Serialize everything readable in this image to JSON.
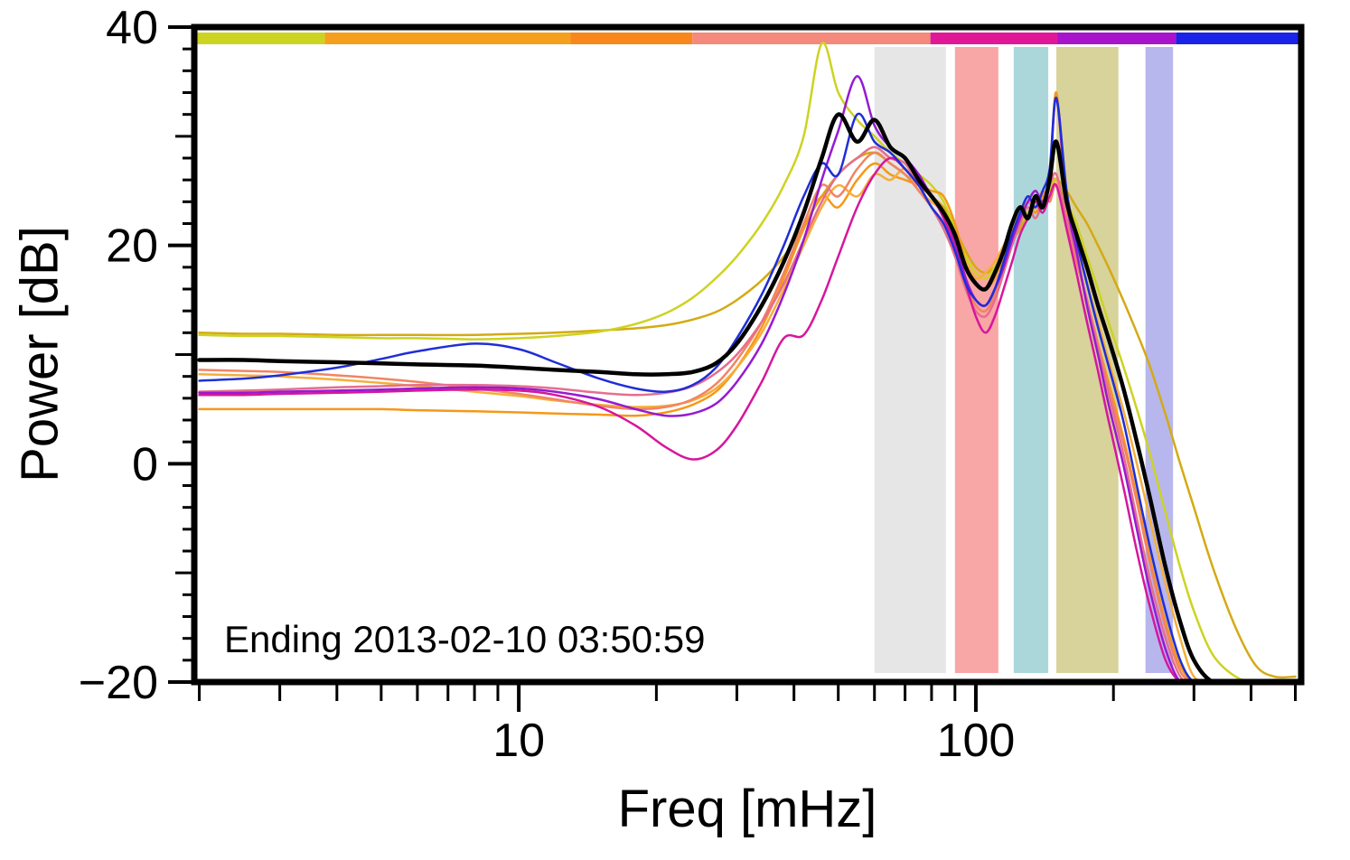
{
  "chart_data": {
    "type": "line",
    "title": "",
    "xlabel": "Freq [mHz]",
    "ylabel": "Power [dB]",
    "annotation": "Ending 2013-02-10 03:50:59",
    "x_scale": "log",
    "y_scale": "linear",
    "xlim": [
      1.95,
      515
    ],
    "ylim": [
      -20,
      40
    ],
    "grid": false,
    "legend": "none",
    "x_major_ticks": [
      {
        "value": 10,
        "label": "10"
      },
      {
        "value": 100,
        "label": "100"
      }
    ],
    "y_major_ticks": [
      {
        "value": 40,
        "label": "40"
      },
      {
        "value": 20,
        "label": "20"
      },
      {
        "value": 0,
        "label": "0"
      },
      {
        "value": -20,
        "label": "−20"
      }
    ],
    "shaded_bands": [
      {
        "name": "gray-band",
        "color": "#e6e6e6",
        "x_range": [
          60,
          86
        ]
      },
      {
        "name": "pink-band",
        "color": "#f9a6a6",
        "x_range": [
          90,
          112
        ]
      },
      {
        "name": "teal-band",
        "color": "#abd7db",
        "x_range": [
          121,
          144
        ]
      },
      {
        "name": "olive-band",
        "color": "#d7d39b",
        "x_range": [
          150,
          205
        ]
      },
      {
        "name": "lavender-band",
        "color": "#b7b7ee",
        "x_range": [
          235,
          270
        ]
      }
    ],
    "top_color_strip": [
      {
        "name": "strip-yellowgreen",
        "color": "#cdd321",
        "span_frac": [
          0.0,
          0.118
        ]
      },
      {
        "name": "strip-orange",
        "color": "#f5a01c",
        "span_frac": [
          0.118,
          0.34
        ]
      },
      {
        "name": "strip-deep-orange",
        "color": "#f8881c",
        "span_frac": [
          0.34,
          0.45
        ]
      },
      {
        "name": "strip-salmon",
        "color": "#f4897c",
        "span_frac": [
          0.45,
          0.665
        ]
      },
      {
        "name": "strip-magenta",
        "color": "#e01898",
        "span_frac": [
          0.665,
          0.78
        ]
      },
      {
        "name": "strip-purple",
        "color": "#a714cc",
        "span_frac": [
          0.78,
          0.887
        ]
      },
      {
        "name": "strip-blue",
        "color": "#1a23e8",
        "span_frac": [
          0.887,
          1.0
        ]
      }
    ],
    "x": [
      2,
      2.5,
      3,
      4,
      5,
      6,
      8,
      10,
      12,
      15,
      18,
      21,
      24,
      27,
      30,
      34,
      38,
      42,
      46,
      50,
      55,
      60,
      65,
      70,
      75,
      80,
      85,
      90,
      95,
      100,
      105,
      110,
      115,
      120,
      125,
      130,
      135,
      140,
      145,
      150,
      158,
      166,
      175,
      185,
      195,
      210,
      225,
      240,
      260,
      280,
      300,
      330,
      370,
      410,
      450,
      500
    ],
    "series": [
      {
        "name": "gold",
        "color": "#d4aa14",
        "width": 2.5,
        "values": [
          12.0,
          11.9,
          11.9,
          11.8,
          11.8,
          11.8,
          11.8,
          11.9,
          12.0,
          12.2,
          12.4,
          12.7,
          13.2,
          13.9,
          15.0,
          16.8,
          19.0,
          21.8,
          24.5,
          26.5,
          28.0,
          28.5,
          27.5,
          26.5,
          25.5,
          24.5,
          23.5,
          21.5,
          19.5,
          18.0,
          17.5,
          18.0,
          19.0,
          20.5,
          21.5,
          23.0,
          23.5,
          24.5,
          25.0,
          26.0,
          25.0,
          23.5,
          22.0,
          20.0,
          18.0,
          15.0,
          12.0,
          9.0,
          4.5,
          0.0,
          -4.0,
          -9.5,
          -15.0,
          -18.5,
          -19.5,
          -19.5
        ]
      },
      {
        "name": "yellow-green",
        "color": "#cdd321",
        "width": 2.5,
        "values": [
          11.8,
          11.7,
          11.7,
          11.6,
          11.5,
          11.5,
          11.4,
          11.5,
          11.7,
          12.1,
          12.8,
          13.8,
          15.2,
          17.0,
          19.0,
          22.0,
          25.5,
          30.0,
          38.5,
          34.0,
          31.5,
          30.0,
          28.5,
          27.5,
          26.5,
          25.5,
          24.0,
          21.5,
          19.0,
          17.5,
          17.0,
          18.0,
          19.5,
          21.0,
          22.0,
          23.0,
          24.0,
          24.5,
          25.0,
          26.0,
          24.0,
          22.0,
          19.0,
          16.0,
          13.0,
          9.0,
          5.0,
          1.0,
          -4.5,
          -9.5,
          -13.5,
          -17.5,
          -19.5,
          -20.0,
          -20.0,
          -20.0
        ]
      },
      {
        "name": "orange",
        "color": "#f59818",
        "width": 2.5,
        "values": [
          5.0,
          5.0,
          5.0,
          5.0,
          5.0,
          4.9,
          4.8,
          4.7,
          4.6,
          4.5,
          4.4,
          4.7,
          5.4,
          6.6,
          8.8,
          12.5,
          17.0,
          21.5,
          24.5,
          23.5,
          26.0,
          27.5,
          26.5,
          26.0,
          25.5,
          25.0,
          24.5,
          22.0,
          18.5,
          16.5,
          16.0,
          17.0,
          19.0,
          21.0,
          22.5,
          24.0,
          23.0,
          24.5,
          26.0,
          34.0,
          23.0,
          19.0,
          15.0,
          11.0,
          7.5,
          2.5,
          -3.0,
          -8.5,
          -14.5,
          -18.5,
          -20.0,
          -20.0,
          -20.0,
          -20.0,
          -20.0,
          -20.0
        ]
      },
      {
        "name": "light-orange",
        "color": "#f6ae3a",
        "width": 2.5,
        "values": [
          8.2,
          8.1,
          8.0,
          7.7,
          7.4,
          7.1,
          6.6,
          6.2,
          5.8,
          5.4,
          5.2,
          5.3,
          5.8,
          6.9,
          8.8,
          12.0,
          16.0,
          20.0,
          23.5,
          25.5,
          24.5,
          26.5,
          26.0,
          27.0,
          25.0,
          24.0,
          23.0,
          21.0,
          18.5,
          17.0,
          17.5,
          18.5,
          20.0,
          21.5,
          23.0,
          24.0,
          25.0,
          24.0,
          25.5,
          26.0,
          23.0,
          20.0,
          16.5,
          13.0,
          9.5,
          5.0,
          0.0,
          -5.0,
          -11.0,
          -16.0,
          -19.5,
          -20.0,
          -20.0,
          -20.0,
          -20.0,
          -20.0
        ]
      },
      {
        "name": "salmon",
        "color": "#f28463",
        "width": 2.5,
        "values": [
          8.6,
          8.5,
          8.4,
          8.1,
          7.8,
          7.5,
          6.9,
          6.4,
          5.9,
          5.3,
          5.0,
          5.2,
          5.9,
          7.3,
          9.5,
          13.0,
          17.5,
          22.0,
          25.5,
          24.5,
          27.0,
          28.5,
          27.5,
          26.5,
          25.0,
          23.5,
          22.0,
          19.5,
          16.5,
          14.5,
          14.0,
          15.5,
          18.0,
          20.5,
          22.5,
          24.0,
          23.5,
          25.0,
          24.0,
          25.5,
          22.0,
          18.5,
          15.0,
          11.0,
          7.0,
          2.0,
          -3.5,
          -9.0,
          -15.0,
          -19.0,
          -20.0,
          -20.0,
          -20.0,
          -20.0,
          -20.0,
          -20.0
        ]
      },
      {
        "name": "rose",
        "color": "#e66e8e",
        "width": 2.5,
        "values": [
          6.6,
          6.7,
          6.8,
          7.0,
          7.1,
          7.2,
          7.2,
          7.1,
          6.9,
          6.5,
          6.3,
          6.5,
          7.1,
          8.3,
          10.0,
          13.0,
          16.5,
          20.5,
          24.0,
          26.5,
          28.0,
          29.0,
          28.0,
          27.5,
          25.5,
          23.5,
          21.5,
          19.0,
          16.0,
          14.0,
          13.5,
          15.0,
          17.5,
          20.0,
          22.0,
          23.5,
          22.5,
          24.0,
          25.5,
          26.5,
          22.5,
          19.0,
          15.0,
          10.5,
          6.5,
          1.0,
          -5.0,
          -10.5,
          -16.0,
          -19.5,
          -20.0,
          -20.0,
          -20.0,
          -20.0,
          -20.0,
          -20.0
        ]
      },
      {
        "name": "magenta",
        "color": "#d6179c",
        "width": 2.5,
        "values": [
          6.3,
          6.3,
          6.4,
          6.5,
          6.6,
          6.7,
          6.8,
          6.7,
          6.3,
          5.2,
          3.5,
          1.5,
          0.4,
          1.2,
          3.5,
          7.5,
          11.5,
          11.8,
          15.0,
          19.0,
          23.5,
          26.5,
          28.0,
          27.0,
          25.5,
          24.5,
          22.5,
          20.0,
          16.5,
          13.5,
          12.0,
          13.5,
          16.0,
          18.5,
          21.0,
          22.5,
          24.0,
          23.0,
          24.5,
          25.5,
          21.5,
          17.5,
          13.0,
          8.5,
          4.0,
          -2.0,
          -8.0,
          -13.0,
          -18.0,
          -20.0,
          -20.0,
          -20.0,
          -20.0,
          -20.0,
          -20.0,
          -20.0
        ]
      },
      {
        "name": "purple",
        "color": "#961ad2",
        "width": 2.5,
        "values": [
          6.5,
          6.5,
          6.6,
          6.7,
          6.8,
          6.9,
          7.0,
          6.9,
          6.6,
          5.9,
          5.0,
          4.4,
          4.6,
          5.5,
          7.5,
          11.0,
          15.5,
          20.5,
          26.0,
          30.5,
          35.5,
          31.0,
          29.0,
          28.0,
          26.5,
          24.5,
          23.0,
          20.5,
          17.0,
          15.0,
          14.5,
          16.0,
          18.0,
          20.5,
          22.5,
          24.0,
          25.0,
          24.0,
          26.0,
          33.5,
          24.0,
          19.5,
          14.5,
          10.0,
          5.5,
          0.0,
          -6.0,
          -11.5,
          -17.0,
          -20.0,
          -20.0,
          -20.0,
          -20.0,
          -20.0,
          -20.0,
          -20.0
        ]
      },
      {
        "name": "blue",
        "color": "#1f2ed8",
        "width": 2.5,
        "values": [
          7.6,
          7.8,
          8.1,
          8.8,
          9.6,
          10.3,
          11.0,
          10.5,
          9.3,
          7.8,
          6.9,
          6.6,
          7.2,
          8.8,
          11.5,
          15.5,
          20.0,
          24.5,
          27.5,
          26.5,
          32.0,
          29.5,
          28.5,
          27.0,
          25.5,
          23.5,
          22.0,
          19.5,
          16.5,
          15.0,
          14.5,
          16.0,
          18.5,
          21.0,
          23.0,
          24.5,
          23.5,
          25.0,
          27.0,
          33.5,
          25.0,
          20.5,
          16.5,
          12.5,
          9.0,
          4.0,
          -2.0,
          -7.5,
          -13.5,
          -18.0,
          -20.0,
          -20.0,
          -20.0,
          -20.0,
          -20.0,
          -20.0
        ]
      },
      {
        "name": "mean-black",
        "color": "#000000",
        "width": 4.5,
        "values": [
          9.5,
          9.5,
          9.4,
          9.3,
          9.2,
          9.1,
          9.0,
          8.8,
          8.6,
          8.4,
          8.2,
          8.2,
          8.4,
          9.2,
          11.0,
          14.5,
          18.5,
          23.0,
          28.0,
          32.0,
          29.5,
          31.5,
          29.0,
          28.0,
          26.0,
          24.5,
          23.0,
          21.0,
          18.0,
          16.5,
          16.0,
          17.5,
          19.5,
          22.0,
          23.5,
          22.5,
          24.5,
          23.5,
          26.0,
          29.5,
          24.0,
          21.0,
          18.0,
          14.5,
          11.5,
          7.0,
          2.0,
          -3.0,
          -9.5,
          -14.5,
          -18.0,
          -20.0,
          -20.0,
          -20.0,
          -20.0,
          -20.0
        ]
      }
    ],
    "frame_color": "#000000"
  }
}
